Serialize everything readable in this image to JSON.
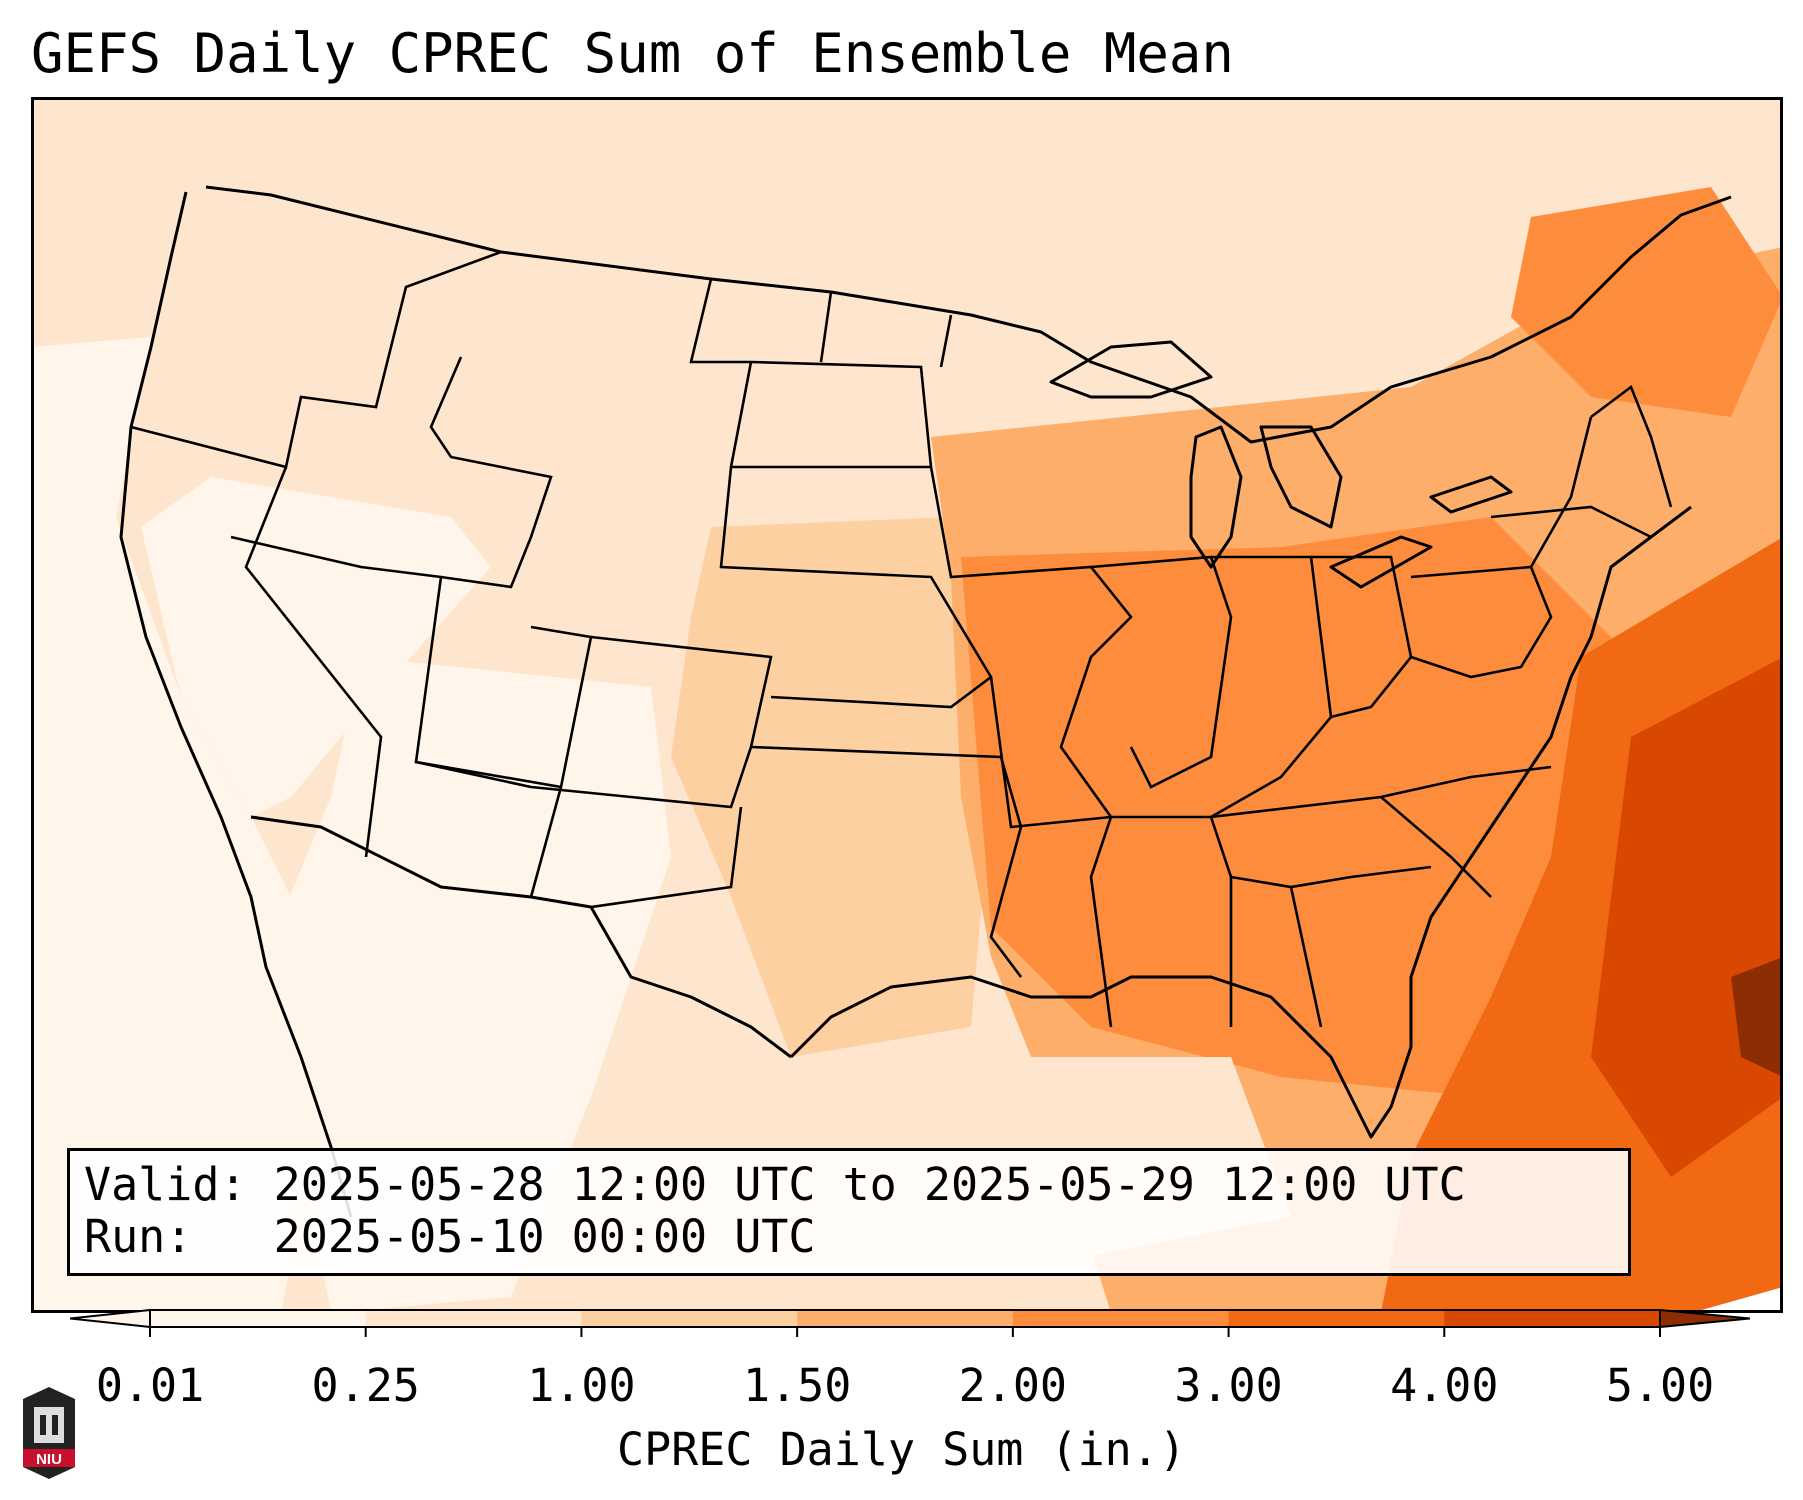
{
  "title": "GEFS Daily CPREC Sum of Ensemble Mean",
  "info": {
    "valid_line": "Valid: 2025-05-28 12:00 UTC to 2025-05-29 12:00 UTC",
    "run_line": "Run:   2025-05-10 00:00 UTC"
  },
  "colorbar": {
    "title": "CPREC Daily Sum (in.)",
    "ticks": [
      "0.01",
      "0.25",
      "1.00",
      "1.50",
      "2.00",
      "3.00",
      "4.00",
      "5.00"
    ],
    "colors": [
      "#fff5eb",
      "#fee6ce",
      "#fdd0a2",
      "#fdae6b",
      "#fd8d3c",
      "#f16913",
      "#d94801",
      "#8c2d04"
    ]
  },
  "logo": {
    "text": "NIU"
  },
  "map": {
    "projection": "Lambert Conformal",
    "region": "CONUS",
    "overlay": [
      "country-borders",
      "state-borders",
      "coastlines"
    ]
  }
}
